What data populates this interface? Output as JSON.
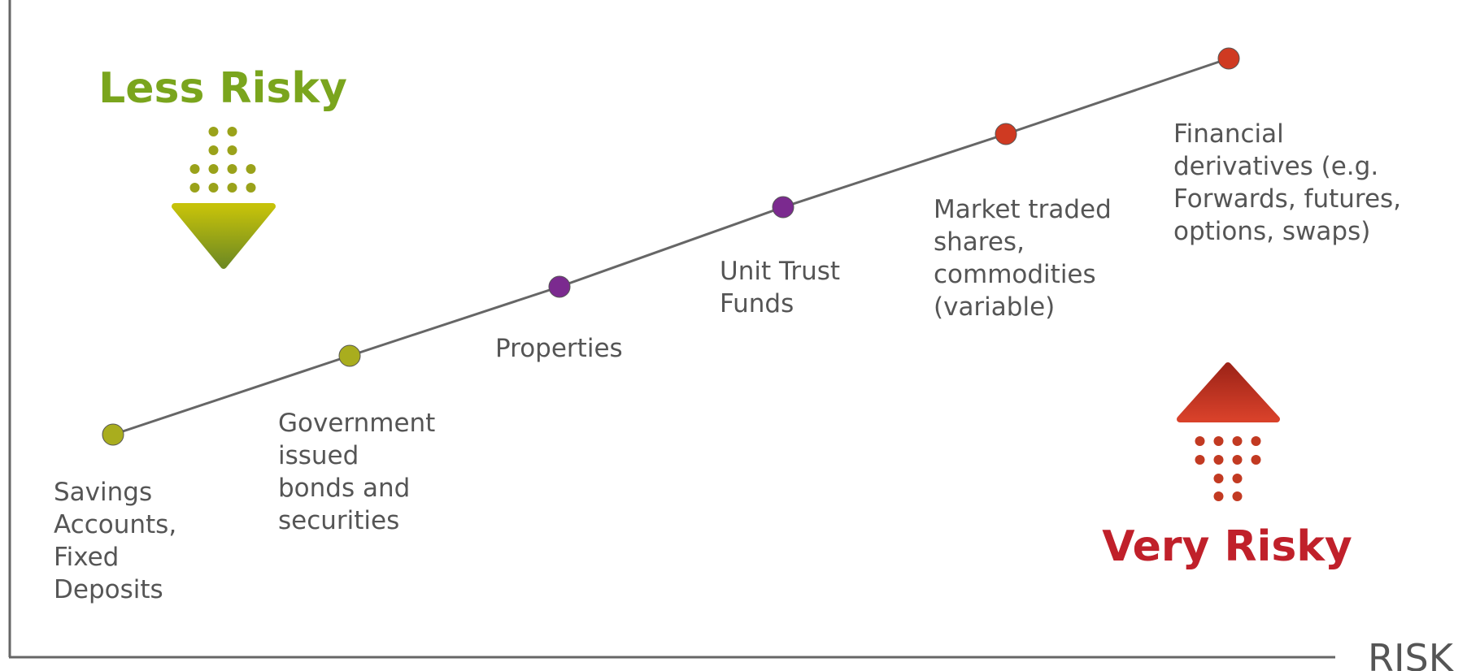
{
  "title_low": "Less Risky",
  "title_high": "Very Risky",
  "axis_label": "RISK",
  "nodes": [
    {
      "lines": [
        "Savings",
        "Accounts,",
        "Fixed",
        "Deposits"
      ],
      "color": "#a9ad1e"
    },
    {
      "lines": [
        "Government",
        "issued",
        "bonds and",
        "securities"
      ],
      "color": "#a9ad1e"
    },
    {
      "lines": [
        "Properties"
      ],
      "color": "#7b2a8f"
    },
    {
      "lines": [
        "Unit Trust",
        "Funds"
      ],
      "color": "#7b2a8f"
    },
    {
      "lines": [
        "Market traded",
        "shares,",
        "commodities",
        "(variable)"
      ],
      "color": "#cf3a22"
    },
    {
      "lines": [
        "Financial",
        "derivatives (e.g.",
        "Forwards, futures,",
        "options, swaps)"
      ],
      "color": "#cf3a22"
    }
  ]
}
